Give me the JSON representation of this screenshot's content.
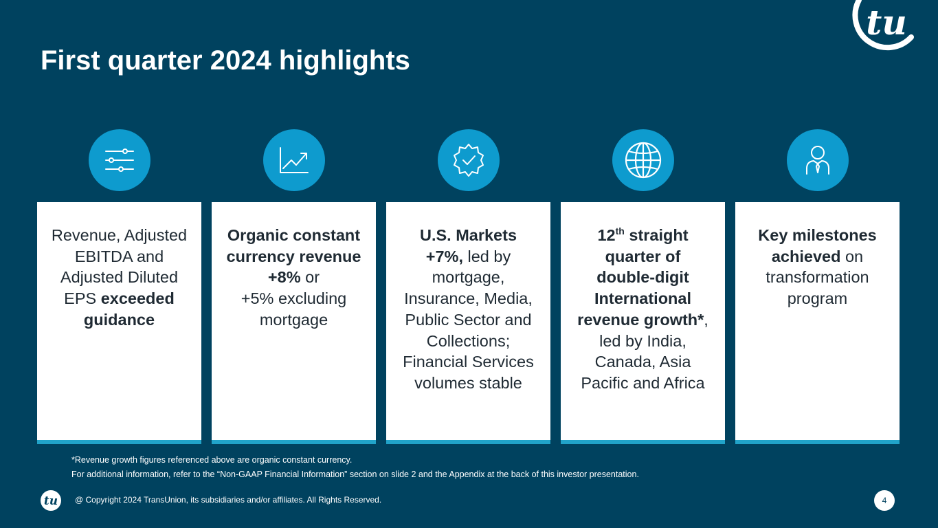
{
  "slide": {
    "title": "First quarter 2024 highlights",
    "logo_icon": "transunion-logo-icon",
    "accent_color": "#0e9bce",
    "background_color": "#00425f"
  },
  "highlights": [
    {
      "icon": "sliders-icon",
      "lines": [
        [
          {
            "t": "Revenue, Adjusted"
          }
        ],
        [
          {
            "t": "EBITDA and"
          }
        ],
        [
          {
            "t": "Adjusted Diluted"
          }
        ],
        [
          {
            "t": "EPS "
          },
          {
            "t": "exceeded",
            "b": true
          }
        ],
        [
          {
            "t": "guidance",
            "b": true
          }
        ]
      ]
    },
    {
      "icon": "trend-chart-icon",
      "lines": [
        [
          {
            "t": "Organic constant",
            "b": true
          }
        ],
        [
          {
            "t": "currency revenue",
            "b": true
          }
        ],
        [
          {
            "t": "+8%",
            "b": true
          },
          {
            "t": " or"
          }
        ],
        [
          {
            "t": "+5% excluding"
          }
        ],
        [
          {
            "t": "mortgage"
          }
        ]
      ]
    },
    {
      "icon": "badge-check-icon",
      "lines": [
        [
          {
            "t": "U.S. Markets",
            "b": true
          }
        ],
        [
          {
            "t": "+7%,",
            "b": true
          },
          {
            "t": " led by"
          }
        ],
        [
          {
            "t": "mortgage,"
          }
        ],
        [
          {
            "t": "Insurance, Media,"
          }
        ],
        [
          {
            "t": "Public Sector and"
          }
        ],
        [
          {
            "t": "Collections;"
          }
        ],
        [
          {
            "t": "Financial Services"
          }
        ],
        [
          {
            "t": "volumes stable"
          }
        ]
      ]
    },
    {
      "icon": "globe-icon",
      "lines": [
        [
          {
            "t": "12",
            "b": true
          },
          {
            "t": "th",
            "b": true,
            "sup": true
          },
          {
            "t": " straight",
            "b": true
          }
        ],
        [
          {
            "t": "quarter of",
            "b": true
          }
        ],
        [
          {
            "t": "double-digit",
            "b": true
          }
        ],
        [
          {
            "t": "International",
            "b": true
          }
        ],
        [
          {
            "t": "revenue growth*",
            "b": true
          },
          {
            "t": ","
          }
        ],
        [
          {
            "t": "led by India,"
          }
        ],
        [
          {
            "t": "Canada, Asia"
          }
        ],
        [
          {
            "t": "Pacific and Africa"
          }
        ]
      ]
    },
    {
      "icon": "person-icon",
      "lines": [
        [
          {
            "t": "Key milestones",
            "b": true
          }
        ],
        [
          {
            "t": "achieved",
            "b": true
          },
          {
            "t": " on"
          }
        ],
        [
          {
            "t": "transformation"
          }
        ],
        [
          {
            "t": "program"
          }
        ]
      ]
    }
  ],
  "footnotes": [
    "*Revenue growth figures referenced above are organic constant currency.",
    "For additional information, refer to the “Non-GAAP Financial Information” section on slide 2 and the Appendix at the back of this investor presentation."
  ],
  "footer": {
    "copyright": "@ Copyright 2024 TransUnion, its subsidiaries and/or affiliates.  All Rights Reserved.",
    "page_number": "4"
  }
}
